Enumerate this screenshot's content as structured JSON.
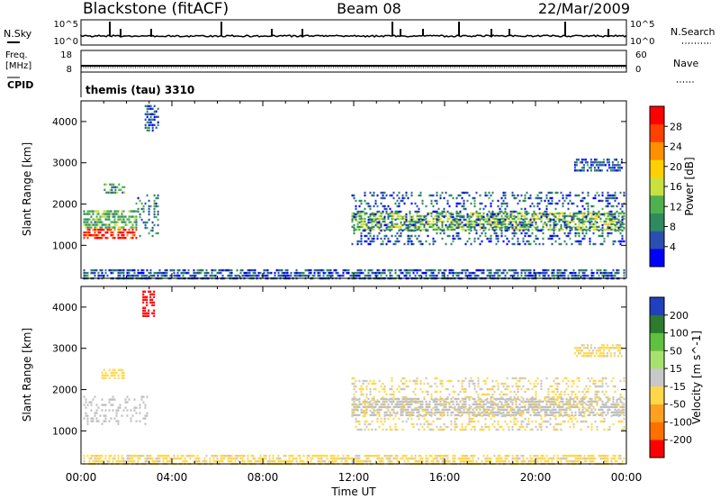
{
  "header": {
    "station": "Blackstone (fitACF)",
    "beam": "Beam 08",
    "date": "22/Mar/2009"
  },
  "strip_labels": {
    "nsky": "N.Sky",
    "nsky_top": "10^5",
    "nsky_bottom": "10^0",
    "nsearch": "N.Search",
    "nsearch_top": "10^5",
    "nsearch_bottom": "10^0",
    "freq_label": "Freq.",
    "freq_unit": "[MHz]",
    "freq_top": "18",
    "freq_bottom": "8",
    "nave_label": "Nave",
    "nave_top": "60",
    "nave_bottom": "0",
    "cpid_label": "CPID",
    "cpid_value": "themis (tau) 3310"
  },
  "colors": {
    "power_scale": [
      "#0000ff",
      "#2a4fb0",
      "#2f8a60",
      "#4fb04f",
      "#c8e040",
      "#ffd000",
      "#ff9000",
      "#ff4000",
      "#ff0000"
    ],
    "velocity_scale": [
      "#2040c0",
      "#2e7a2e",
      "#60c040",
      "#a8e070",
      "#c8c8c8",
      "#ffd84a",
      "#ffa020",
      "#ff7000",
      "#ff0000"
    ],
    "ground_gray": "#c0c0c0"
  },
  "chart_data": [
    {
      "type": "heatmap",
      "panel": "power",
      "xlabel": "",
      "ylabel": "Slant Range [km]",
      "xlim": [
        "00:00",
        "24:00"
      ],
      "ylim": [
        200,
        4500
      ],
      "yticks": [
        1000,
        2000,
        3000,
        4000
      ],
      "colorbar": {
        "label": "Power [dB]",
        "range": [
          0,
          32
        ],
        "ticks": [
          "4",
          "8",
          "12",
          "16",
          "20",
          "24",
          "28"
        ]
      },
      "regions": [
        {
          "t": [
            0.1,
            2.4
          ],
          "r": [
            1150,
            1400
          ],
          "value": 28
        },
        {
          "t": [
            0.1,
            2.4
          ],
          "r": [
            1400,
            1850
          ],
          "value": 12
        },
        {
          "t": [
            1.0,
            1.9
          ],
          "r": [
            2300,
            2500
          ],
          "value": 10
        },
        {
          "t": [
            2.4,
            3.4
          ],
          "r": [
            1200,
            2300
          ],
          "value": 8
        },
        {
          "t": [
            2.8,
            3.4
          ],
          "r": [
            3800,
            4400
          ],
          "value": 6
        },
        {
          "t": [
            11.9,
            23.9
          ],
          "r": [
            1350,
            1800
          ],
          "value": 14
        },
        {
          "t": [
            11.9,
            23.9
          ],
          "r": [
            1050,
            2300
          ],
          "value": 6
        },
        {
          "t": [
            21.7,
            23.8
          ],
          "r": [
            2800,
            3100
          ],
          "value": 6
        },
        {
          "t": [
            0.1,
            23.9
          ],
          "r": [
            220,
            420
          ],
          "value": 6
        }
      ]
    },
    {
      "type": "heatmap",
      "panel": "velocity",
      "xlabel": "Time UT",
      "ylabel": "Slant Range [km]",
      "xlim": [
        "00:00",
        "24:00"
      ],
      "ylim": [
        200,
        4500
      ],
      "yticks": [
        1000,
        2000,
        3000,
        4000
      ],
      "xticks": [
        "00:00",
        "04:00",
        "08:00",
        "12:00",
        "16:00",
        "20:00",
        "00:00"
      ],
      "colorbar": {
        "label": "Velocity [m s^-1]",
        "range": [
          -250,
          250
        ],
        "ticks": [
          "200",
          "100",
          "50",
          "15",
          "-15",
          "-50",
          "-100",
          "-200"
        ]
      },
      "regions": [
        {
          "t": [
            0.1,
            2.9
          ],
          "r": [
            1150,
            1850
          ],
          "value": 0
        },
        {
          "t": [
            0.9,
            1.9
          ],
          "r": [
            2300,
            2500
          ],
          "value": -60
        },
        {
          "t": [
            2.7,
            3.2
          ],
          "r": [
            3800,
            4400
          ],
          "value": -220
        },
        {
          "t": [
            11.9,
            23.9
          ],
          "r": [
            1350,
            1800
          ],
          "value": 0
        },
        {
          "t": [
            11.9,
            23.9
          ],
          "r": [
            1050,
            2300
          ],
          "value": -30
        },
        {
          "t": [
            21.7,
            23.8
          ],
          "r": [
            2800,
            3100
          ],
          "value": -40
        },
        {
          "t": [
            0.1,
            23.9
          ],
          "r": [
            220,
            420
          ],
          "value": -40
        }
      ]
    }
  ]
}
